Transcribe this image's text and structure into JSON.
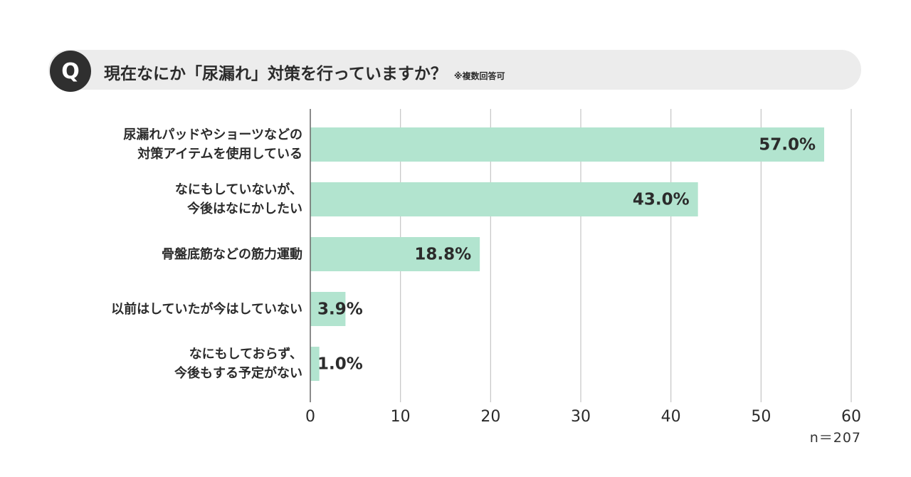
{
  "question": {
    "badge": "Q",
    "text": "現在なにか「尿漏れ」対策を行っていますか？",
    "note": "※複数回答可"
  },
  "sample_size": "n＝207",
  "colors": {
    "bar": "#b2e4cf",
    "grid": "#c4c4c4",
    "axis": "#666666",
    "text": "#2b2b2b"
  },
  "chart_data": {
    "type": "bar",
    "orientation": "horizontal",
    "categories": [
      [
        "尿漏れパッドやショーツなどの",
        "対策アイテムを使用している"
      ],
      [
        "なにもしていないが、",
        "今後はなにかしたい"
      ],
      [
        "骨盤底筋などの筋力運動"
      ],
      [
        "以前はしていたが今はしていない"
      ],
      [
        "なにもしておらず、",
        "今後もする予定がない"
      ]
    ],
    "values": [
      57.0,
      43.0,
      18.8,
      3.9,
      1.0
    ],
    "value_labels": [
      "57.0%",
      "43.0%",
      "18.8%",
      "3.9%",
      "1.0%"
    ],
    "xlim": [
      0,
      60
    ],
    "xticks": [
      0,
      10,
      20,
      30,
      40,
      50,
      60
    ],
    "grid": true
  }
}
